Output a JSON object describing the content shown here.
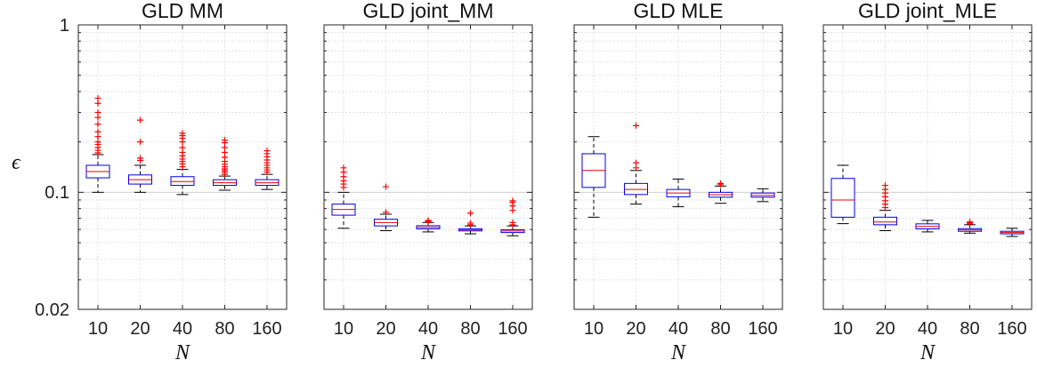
{
  "chart_data": {
    "type": "box",
    "y_scale": "log",
    "ylim": [
      0.02,
      1
    ],
    "yticks": [
      "0.02",
      "0.1",
      "1"
    ],
    "ylabel": "ϵ",
    "xlabel": "N",
    "grid": true,
    "colors": {
      "box": "#0000ee",
      "median": "#e80000",
      "whisker": "#000000",
      "outlier": "#ff0000"
    },
    "panels": [
      {
        "title": "GLD MM",
        "categories": [
          "10",
          "20",
          "40",
          "80",
          "160"
        ],
        "boxes": [
          {
            "q1": 0.122,
            "median": 0.133,
            "q3": 0.145,
            "whislo": 0.1,
            "whishi": 0.168,
            "fliers": [
              0.172,
              0.178,
              0.185,
              0.193,
              0.2,
              0.215,
              0.23,
              0.255,
              0.28,
              0.3,
              0.34,
              0.365
            ]
          },
          {
            "q1": 0.112,
            "median": 0.119,
            "q3": 0.127,
            "whislo": 0.1,
            "whishi": 0.145,
            "fliers": [
              0.155,
              0.16,
              0.2,
              0.27
            ]
          },
          {
            "q1": 0.11,
            "median": 0.116,
            "q3": 0.124,
            "whislo": 0.097,
            "whishi": 0.137,
            "fliers": [
              0.142,
              0.148,
              0.153,
              0.158,
              0.165,
              0.173,
              0.185,
              0.2,
              0.21,
              0.218,
              0.225
            ]
          },
          {
            "q1": 0.11,
            "median": 0.114,
            "q3": 0.119,
            "whislo": 0.103,
            "whishi": 0.125,
            "fliers": [
              0.128,
              0.132,
              0.135,
              0.138,
              0.142,
              0.147,
              0.153,
              0.162,
              0.173,
              0.185,
              0.198,
              0.205
            ]
          },
          {
            "q1": 0.11,
            "median": 0.114,
            "q3": 0.119,
            "whislo": 0.104,
            "whishi": 0.128,
            "fliers": [
              0.132,
              0.136,
              0.14,
              0.145,
              0.15,
              0.156,
              0.163,
              0.17,
              0.177
            ]
          }
        ]
      },
      {
        "title": "GLD joint_MM",
        "categories": [
          "10",
          "20",
          "40",
          "80",
          "160"
        ],
        "boxes": [
          {
            "q1": 0.073,
            "median": 0.079,
            "q3": 0.085,
            "whislo": 0.061,
            "whishi": 0.1,
            "fliers": [
              0.107,
              0.112,
              0.117,
              0.124,
              0.132,
              0.14
            ]
          },
          {
            "q1": 0.063,
            "median": 0.066,
            "q3": 0.069,
            "whislo": 0.059,
            "whishi": 0.074,
            "fliers": [
              0.076,
              0.108
            ]
          },
          {
            "q1": 0.0605,
            "median": 0.0618,
            "q3": 0.0632,
            "whislo": 0.058,
            "whishi": 0.066,
            "fliers": [
              0.0665,
              0.0672,
              0.0679
            ]
          },
          {
            "q1": 0.0588,
            "median": 0.0596,
            "q3": 0.0606,
            "whislo": 0.0565,
            "whishi": 0.063,
            "fliers": [
              0.064,
              0.0655,
              0.075
            ]
          },
          {
            "q1": 0.0575,
            "median": 0.0587,
            "q3": 0.0598,
            "whislo": 0.055,
            "whishi": 0.063,
            "fliers": [
              0.064,
              0.066,
              0.078,
              0.083,
              0.087,
              0.089
            ]
          }
        ]
      },
      {
        "title": "GLD MLE",
        "categories": [
          "10",
          "20",
          "40",
          "80",
          "160"
        ],
        "boxes": [
          {
            "q1": 0.107,
            "median": 0.135,
            "q3": 0.17,
            "whislo": 0.071,
            "whishi": 0.215,
            "fliers": []
          },
          {
            "q1": 0.097,
            "median": 0.104,
            "q3": 0.113,
            "whislo": 0.085,
            "whishi": 0.135,
            "fliers": [
              0.14,
              0.15,
              0.25
            ]
          },
          {
            "q1": 0.094,
            "median": 0.099,
            "q3": 0.104,
            "whislo": 0.082,
            "whishi": 0.12,
            "fliers": []
          },
          {
            "q1": 0.0935,
            "median": 0.0968,
            "q3": 0.1,
            "whislo": 0.086,
            "whishi": 0.109,
            "fliers": [
              0.111,
              0.113
            ]
          },
          {
            "q1": 0.0935,
            "median": 0.0958,
            "q3": 0.099,
            "whislo": 0.088,
            "whishi": 0.105,
            "fliers": []
          }
        ]
      },
      {
        "title": "GLD joint_MLE",
        "categories": [
          "10",
          "20",
          "40",
          "80",
          "160"
        ],
        "boxes": [
          {
            "q1": 0.071,
            "median": 0.09,
            "q3": 0.121,
            "whislo": 0.065,
            "whishi": 0.145,
            "fliers": []
          },
          {
            "q1": 0.064,
            "median": 0.0665,
            "q3": 0.071,
            "whislo": 0.059,
            "whishi": 0.078,
            "fliers": [
              0.081,
              0.085,
              0.089,
              0.094,
              0.099,
              0.104,
              0.11
            ]
          },
          {
            "q1": 0.0605,
            "median": 0.0625,
            "q3": 0.0648,
            "whislo": 0.058,
            "whishi": 0.068,
            "fliers": []
          },
          {
            "q1": 0.0585,
            "median": 0.0596,
            "q3": 0.0607,
            "whislo": 0.057,
            "whishi": 0.064,
            "fliers": [
              0.0648,
              0.0658,
              0.0665
            ]
          },
          {
            "q1": 0.0565,
            "median": 0.0575,
            "q3": 0.0585,
            "whislo": 0.0545,
            "whishi": 0.061,
            "fliers": []
          }
        ]
      }
    ]
  }
}
